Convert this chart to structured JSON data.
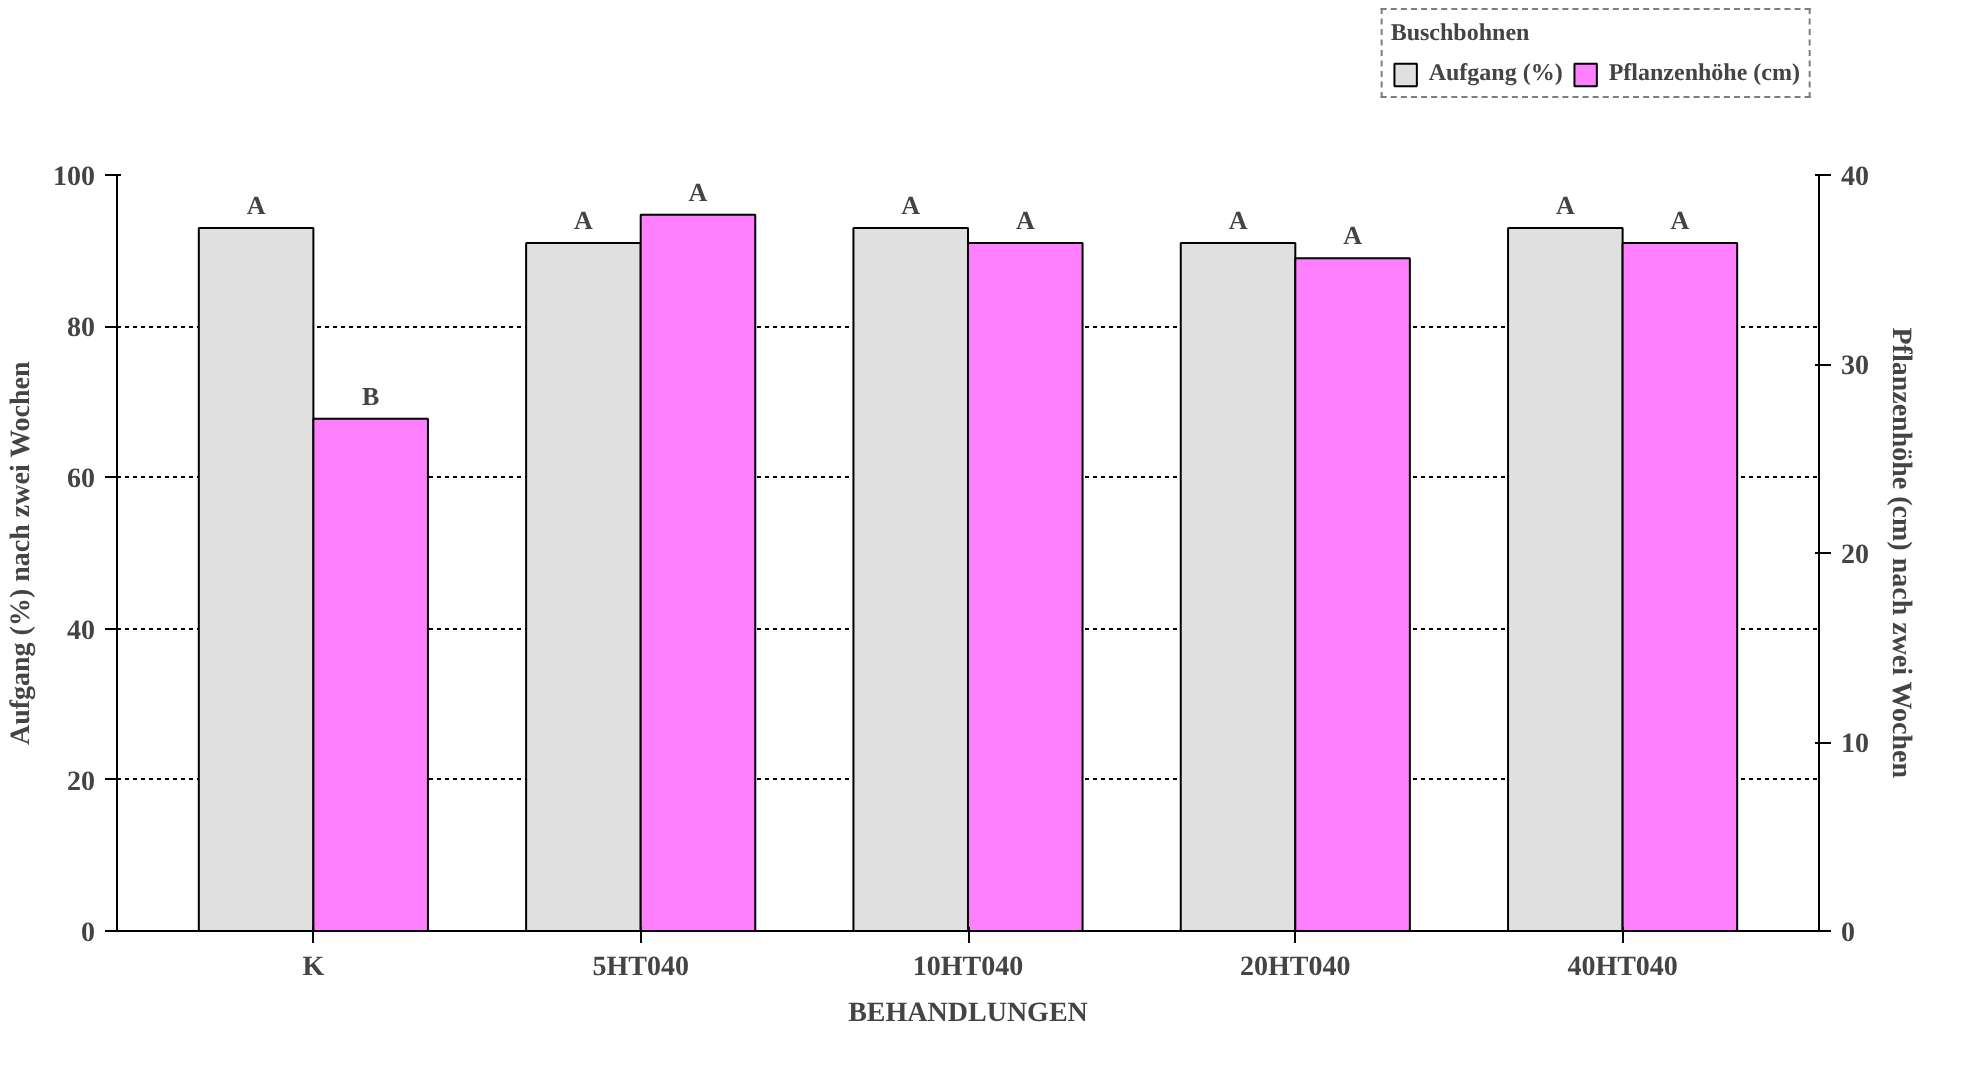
{
  "chart_data": {
    "type": "bar",
    "categories": [
      "K",
      "5HT040",
      "10HT040",
      "20HT040",
      "40HT040"
    ],
    "xlabel": "BEHANDLUNGEN",
    "ylabel": "Aufgang (%) nach zwei Wochen",
    "y2label": "Pflanzenhöhe (cm) nach zwei Wochen",
    "legend_title": "Buschbohnen",
    "legend": "top right",
    "grid": "y",
    "ylim": [
      0,
      100
    ],
    "yticks": [
      0,
      20,
      40,
      60,
      80,
      100
    ],
    "y2lim": [
      0,
      40
    ],
    "y2ticks": [
      0,
      10,
      20,
      30,
      40
    ],
    "series": [
      {
        "name": "Aufgang (%)",
        "color": "#e0e0e0",
        "values": [
          93,
          91,
          93,
          91,
          93
        ],
        "value_labels": [
          "A",
          "A",
          "A",
          "A",
          "A"
        ]
      },
      {
        "name": "Pflanzenhöhe (cm)",
        "color": "#ff80ff",
        "axis": "y2",
        "values": [
          27.1,
          37.9,
          36.4,
          35.6,
          36.4
        ],
        "value_labels": [
          "B",
          "A",
          "A",
          "A",
          "A"
        ]
      }
    ]
  }
}
